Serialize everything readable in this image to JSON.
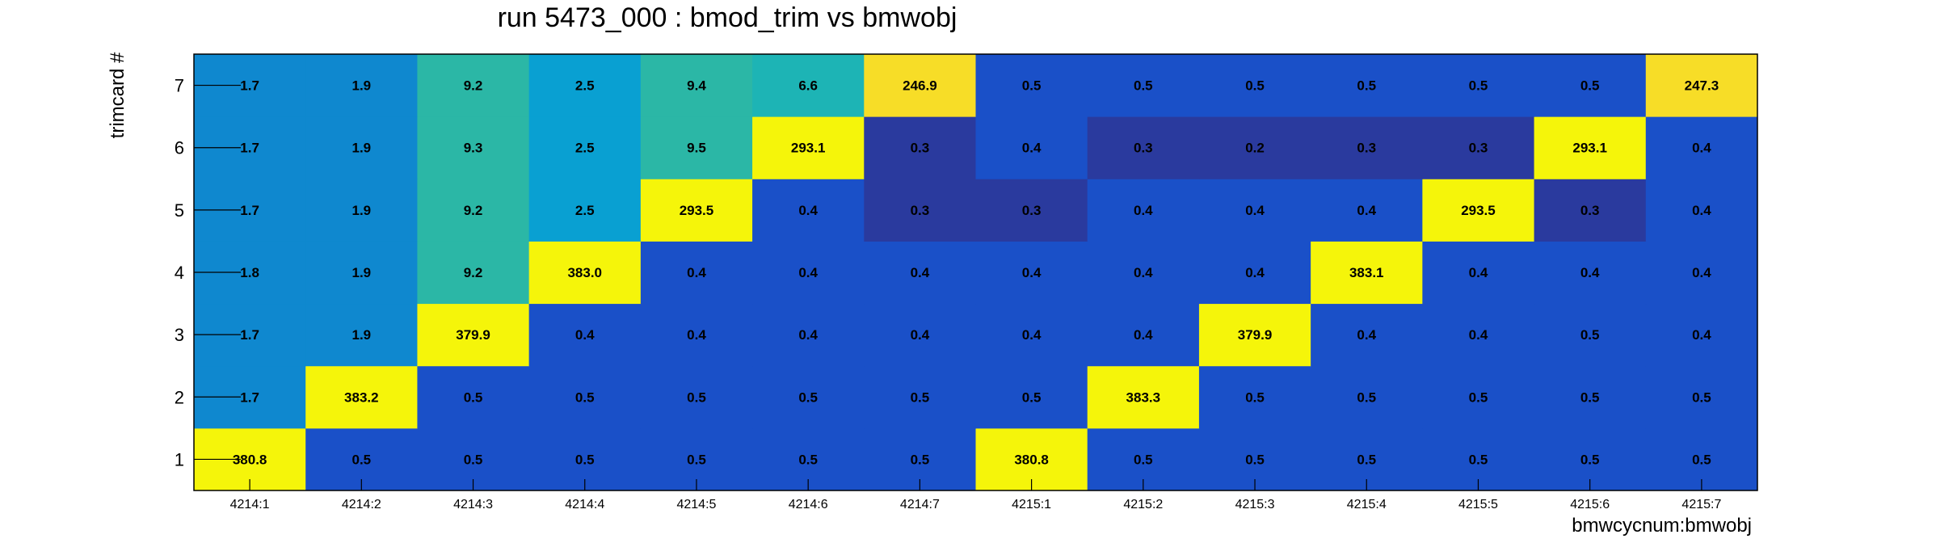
{
  "chart_data": {
    "type": "heatmap",
    "title": "run 5473_000 : bmod_trim vs bmwobj",
    "xlabel": "bmwcycnum:bmwobj",
    "ylabel": "trimcard #",
    "x_categories": [
      "4214:1",
      "4214:2",
      "4214:3",
      "4214:4",
      "4214:5",
      "4214:6",
      "4214:7",
      "4215:1",
      "4215:2",
      "4215:3",
      "4215:4",
      "4215:5",
      "4215:6",
      "4215:7"
    ],
    "y_categories": [
      "1",
      "2",
      "3",
      "4",
      "5",
      "6",
      "7"
    ],
    "values": [
      [
        "380.8",
        "0.5",
        "0.5",
        "0.5",
        "0.5",
        "0.5",
        "0.5",
        "380.8",
        "0.5",
        "0.5",
        "0.5",
        "0.5",
        "0.5",
        "0.5"
      ],
      [
        "1.7",
        "383.2",
        "0.5",
        "0.5",
        "0.5",
        "0.5",
        "0.5",
        "0.5",
        "383.3",
        "0.5",
        "0.5",
        "0.5",
        "0.5",
        "0.5"
      ],
      [
        "1.7",
        "1.9",
        "379.9",
        "0.4",
        "0.4",
        "0.4",
        "0.4",
        "0.4",
        "0.4",
        "379.9",
        "0.4",
        "0.4",
        "0.5",
        "0.4"
      ],
      [
        "1.8",
        "1.9",
        "9.2",
        "383.0",
        "0.4",
        "0.4",
        "0.4",
        "0.4",
        "0.4",
        "0.4",
        "383.1",
        "0.4",
        "0.4",
        "0.4"
      ],
      [
        "1.7",
        "1.9",
        "9.2",
        "2.5",
        "293.5",
        "0.4",
        "0.3",
        "0.3",
        "0.4",
        "0.4",
        "0.4",
        "293.5",
        "0.3",
        "0.4"
      ],
      [
        "1.7",
        "1.9",
        "9.3",
        "2.5",
        "9.5",
        "293.1",
        "0.3",
        "0.4",
        "0.3",
        "0.2",
        "0.3",
        "0.3",
        "293.1",
        "0.4"
      ],
      [
        "1.7",
        "1.9",
        "9.2",
        "2.5",
        "9.4",
        "6.6",
        "246.9",
        "0.5",
        "0.5",
        "0.5",
        "0.5",
        "0.5",
        "0.5",
        "247.3"
      ]
    ],
    "colors": {
      "very_low": "#2a3a9e",
      "low": "#1a50c8",
      "mid_low": "#0f88cf",
      "mid_low_alt": "#09a0d2",
      "mid": "#2bb7a6",
      "mid_high": "#1db4b5",
      "high_alt": "#f7dd27",
      "high": "#f5f50a"
    },
    "grid": false,
    "legend": "none"
  }
}
